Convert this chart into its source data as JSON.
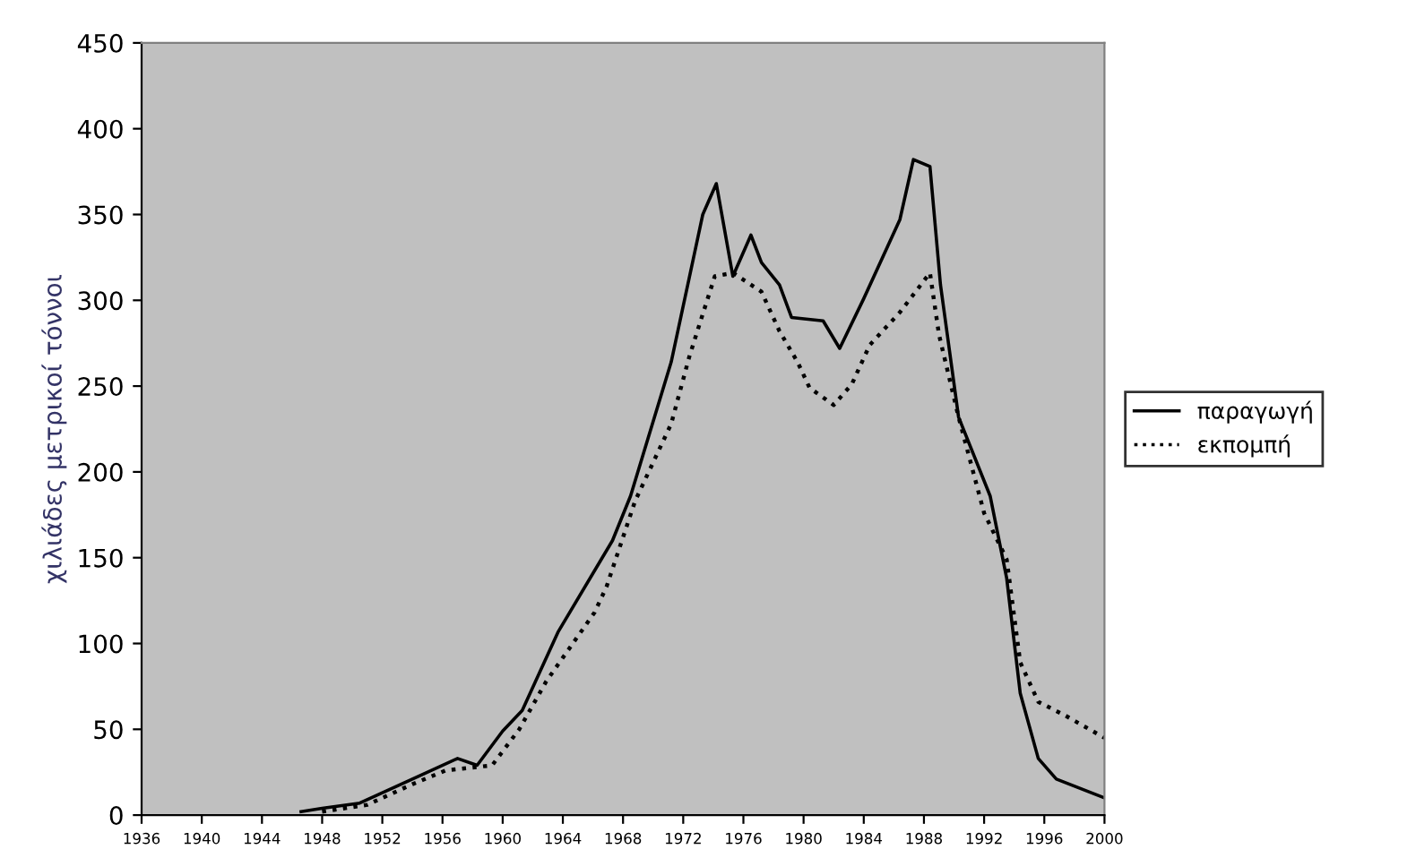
{
  "chart_data": {
    "type": "line",
    "ylabel": "χιλιάδες μετρικοί τόννοι",
    "xlim": [
      1936,
      2000
    ],
    "xticks": [
      1936,
      1940,
      1944,
      1948,
      1952,
      1956,
      1960,
      1964,
      1968,
      1972,
      1976,
      1980,
      1984,
      1988,
      1992,
      1996,
      2000
    ],
    "ylim": [
      0,
      450
    ],
    "yticks": [
      0,
      50,
      100,
      150,
      200,
      250,
      300,
      350,
      400,
      450
    ],
    "grid": false,
    "legend": "right",
    "marker": "none",
    "series": [
      {
        "name": "παραγωγή",
        "color": "#000000",
        "line_style": "solid",
        "x": [
          1946.6,
          1948,
          1950.5,
          1954,
          1957,
          1958.3,
          1960,
          1961.3,
          1963.7,
          1967.3,
          1968.5,
          1971.2,
          1972.3,
          1973.3,
          1974.2,
          1975.3,
          1976.5,
          1977.2,
          1978.4,
          1979.2,
          1981.3,
          1982.4,
          1984,
          1986.4,
          1987.3,
          1988.4,
          1989.1,
          1990.3,
          1992.4,
          1993.5,
          1994.4,
          1995.6,
          1996.8,
          2000
        ],
        "values": [
          2,
          4,
          7,
          21,
          33,
          29,
          49,
          61,
          107,
          160,
          186,
          264,
          309,
          350,
          368,
          314,
          338,
          322,
          309,
          290,
          288,
          272,
          301,
          347,
          382,
          378,
          309,
          232,
          186,
          138,
          71,
          33,
          21,
          10
        ]
      },
      {
        "name": "εκπομπή",
        "color": "#000000",
        "line_style": "dotted",
        "x": [
          1948,
          1951,
          1954,
          1956.2,
          1959.3,
          1961.1,
          1962.9,
          1966.1,
          1966.9,
          1968.8,
          1971.2,
          1972.4,
          1973.3,
          1974.1,
          1975.3,
          1977.2,
          1978.4,
          1979.6,
          1980.4,
          1982,
          1983.2,
          1984.4,
          1986.4,
          1988.4,
          1989,
          1990.3,
          1992,
          1993.5,
          1994.4,
          1995.6,
          1997.4,
          2000
        ],
        "values": [
          2,
          6,
          18,
          26,
          29,
          50,
          78,
          118,
          133,
          183,
          228,
          267,
          292,
          314,
          316,
          305,
          282,
          264,
          249,
          239,
          251,
          274,
          293,
          316,
          280,
          232,
          176,
          149,
          89,
          66,
          58,
          45
        ]
      }
    ]
  }
}
